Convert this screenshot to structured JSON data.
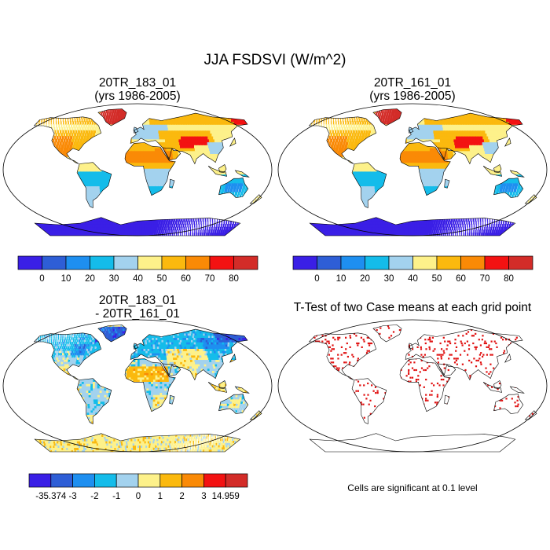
{
  "figure": {
    "title": "JJA FSDSVI (W/m^2)"
  },
  "panels": [
    {
      "id": "case1",
      "title_line1": "20TR_183_01",
      "title_line2": "(yrs 1986-2005)",
      "colorbar_ticks": [
        "0",
        "10",
        "20",
        "30",
        "40",
        "50",
        "60",
        "70",
        "80"
      ],
      "colorbar_colors": [
        "#3a1fe6",
        "#2e5ed6",
        "#1e8ff0",
        "#14bcea",
        "#a3d2ee",
        "#fdf18a",
        "#fbb90e",
        "#fa8a06",
        "#f31212",
        "#d32c28"
      ]
    },
    {
      "id": "case2",
      "title_line1": "20TR_161_01",
      "title_line2": "(yrs 1986-2005)",
      "colorbar_ticks": [
        "0",
        "10",
        "20",
        "30",
        "40",
        "50",
        "60",
        "70",
        "80"
      ],
      "colorbar_colors": [
        "#3a1fe6",
        "#2e5ed6",
        "#1e8ff0",
        "#14bcea",
        "#a3d2ee",
        "#fdf18a",
        "#fbb90e",
        "#fa8a06",
        "#f31212",
        "#d32c28"
      ]
    },
    {
      "id": "difference",
      "title_line1": "20TR_183_01",
      "title_line2": "- 20TR_161_01",
      "colorbar_ticks": [
        "-35.374",
        "-3",
        "-2",
        "-1",
        "0",
        "1",
        "2",
        "3",
        "14.959"
      ],
      "colorbar_colors": [
        "#3a1fe6",
        "#2e5ed6",
        "#1e8ff0",
        "#14bcea",
        "#a3d2ee",
        "#fdf18a",
        "#fbb90e",
        "#fa8a06",
        "#f31212",
        "#d32c28"
      ]
    },
    {
      "id": "ttest",
      "title_line1": "T-Test of two Case means at each grid point",
      "significance_note": "Cells are significant at 0.1 level",
      "marker_color": "#e01010"
    }
  ]
}
